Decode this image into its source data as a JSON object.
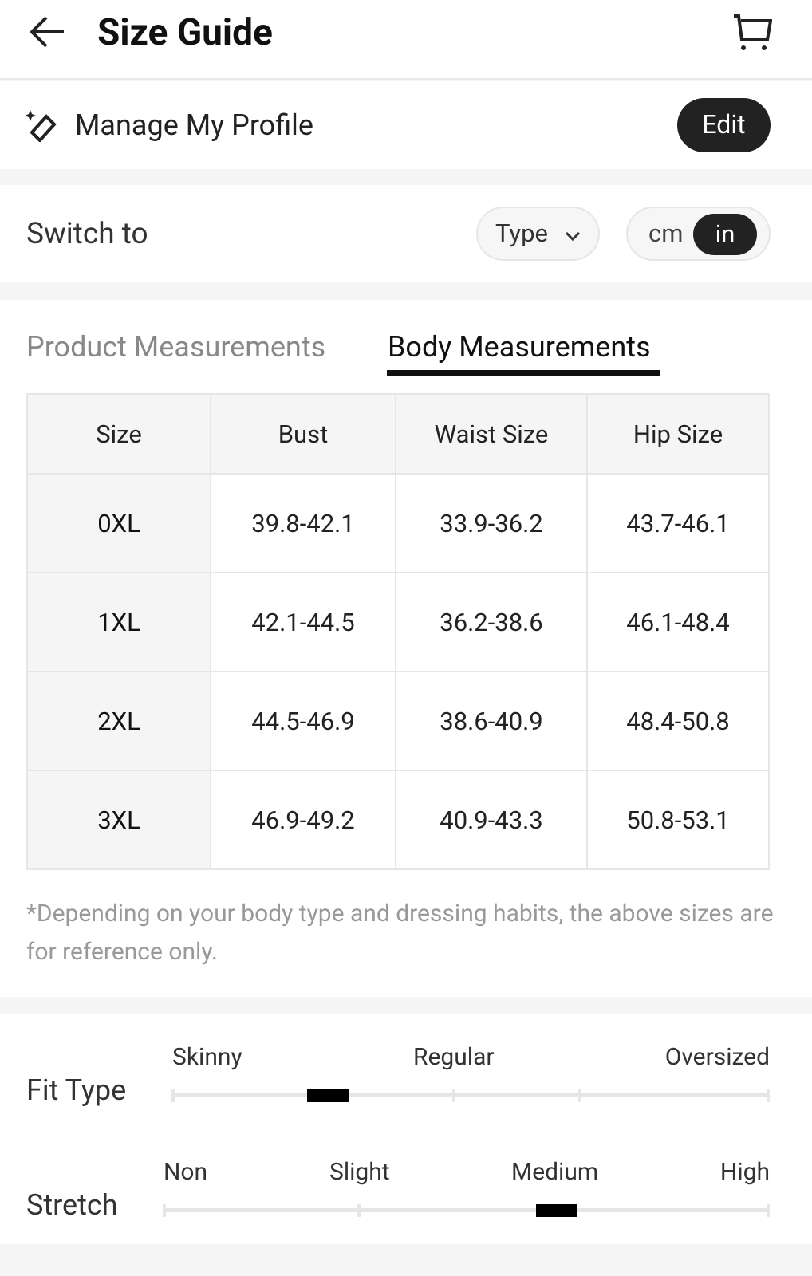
{
  "header": {
    "title": "Size Guide",
    "back_icon": "arrow-left-icon",
    "cart_icon": "cart-icon"
  },
  "profile": {
    "label": "Manage My Profile",
    "icon": "ruler-sparkle-icon",
    "edit_label": "Edit"
  },
  "switch": {
    "label": "Switch to",
    "type_label": "Type",
    "units": [
      "cm",
      "in"
    ],
    "selected_unit": "in"
  },
  "tabs": [
    {
      "label": "Product Measurements",
      "active": false
    },
    {
      "label": "Body Measurements",
      "active": true
    }
  ],
  "table": {
    "headers": [
      "Size",
      "Bust",
      "Waist Size",
      "Hip Size"
    ],
    "rows": [
      [
        "0XL",
        "39.8-42.1",
        "33.9-36.2",
        "43.7-46.1"
      ],
      [
        "1XL",
        "42.1-44.5",
        "36.2-38.6",
        "46.1-48.4"
      ],
      [
        "2XL",
        "44.5-46.9",
        "38.6-40.9",
        "48.4-50.8"
      ],
      [
        "3XL",
        "46.9-49.2",
        "40.9-43.3",
        "50.8-53.1"
      ]
    ]
  },
  "note": "*Depending on your body type and dressing habits, the above sizes are for reference only.",
  "fit_type": {
    "label": "Fit Type",
    "options": [
      "Skinny",
      "Regular",
      "Oversized"
    ],
    "level": 0.26
  },
  "stretch": {
    "label": "Stretch",
    "options": [
      "Non",
      "Slight",
      "Medium",
      "High"
    ],
    "level": 0.65
  }
}
